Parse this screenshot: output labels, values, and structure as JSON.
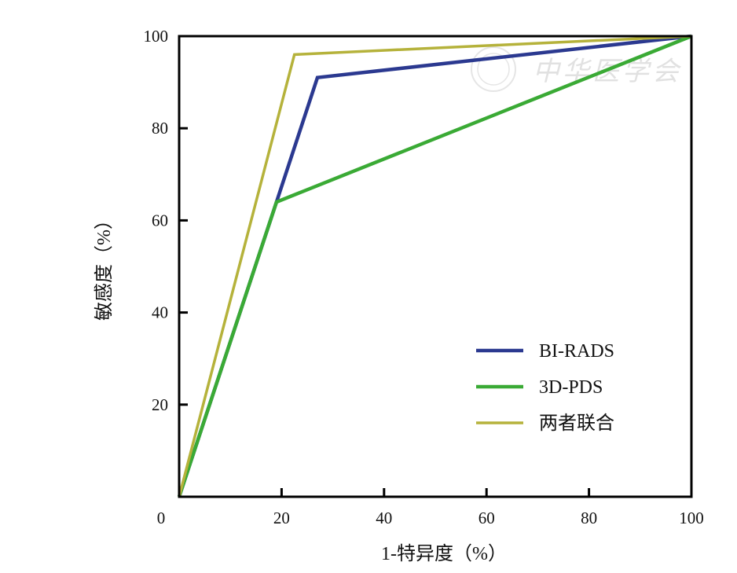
{
  "chart_data": {
    "type": "line",
    "title": "",
    "xlabel": "1-特异度（%）",
    "ylabel": "敏感度（%）",
    "xlim": [
      0,
      100
    ],
    "ylim": [
      0,
      100
    ],
    "x_ticks": [
      0,
      20,
      40,
      60,
      80,
      100
    ],
    "y_ticks": [
      20,
      40,
      60,
      80,
      100
    ],
    "grid": false,
    "legend_position": "bottom-right",
    "series": [
      {
        "name": "BI-RADS",
        "color": "#2b3990",
        "x": [
          0,
          19,
          27,
          100
        ],
        "y": [
          0,
          64,
          91,
          100
        ]
      },
      {
        "name": "3D-PDS",
        "color": "#3aaa35",
        "x": [
          0,
          19,
          100
        ],
        "y": [
          0,
          64,
          100
        ]
      },
      {
        "name": "两者联合",
        "color": "#b5b23b",
        "x": [
          0,
          22.5,
          100
        ],
        "y": [
          0,
          96,
          100
        ]
      }
    ]
  },
  "watermark": {
    "text": "中华医学会"
  }
}
